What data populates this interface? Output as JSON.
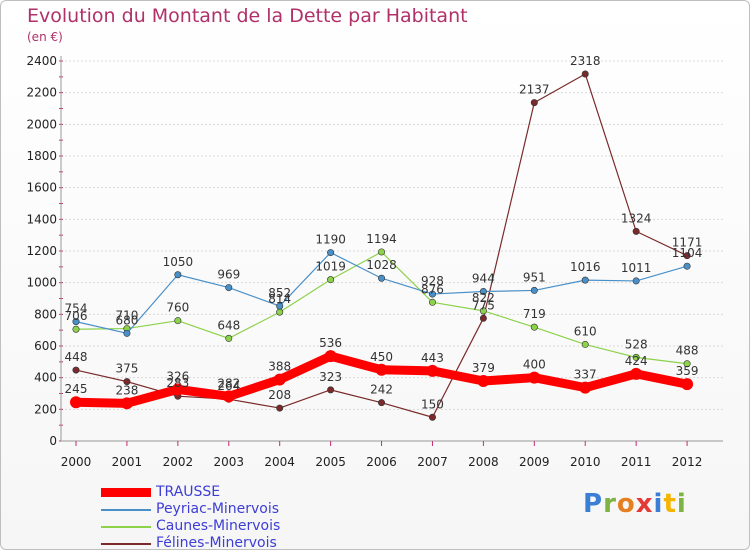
{
  "title": "Evolution du Montant de la Dette par Habitant",
  "subtitle": "(en €)",
  "logo": {
    "text": "Proxiti",
    "letter_colors": [
      "#3a7fd5",
      "#7cb342",
      "#e67e22",
      "#e53935",
      "#3a7fd5",
      "#f4b400",
      "#7cb342"
    ]
  },
  "chart_data": {
    "type": "line",
    "categories": [
      "2000",
      "2001",
      "2002",
      "2003",
      "2004",
      "2005",
      "2006",
      "2007",
      "2008",
      "2009",
      "2010",
      "2011",
      "2012"
    ],
    "ylim": [
      0,
      2400
    ],
    "yticks": [
      "0",
      "200",
      "400",
      "600",
      "800",
      "1000",
      "1200",
      "1400",
      "1600",
      "1800",
      "2000",
      "2200",
      "2400"
    ],
    "grid": "horizontal",
    "legend_position": "bottom-left",
    "series": [
      {
        "name": "TRAUSSE",
        "color": "#ff0000",
        "values": [
          245,
          238,
          326,
          282,
          388,
          536,
          450,
          443,
          379,
          400,
          337,
          424,
          359
        ],
        "labels": [
          "245",
          "238",
          "326",
          "282",
          "388",
          "536",
          "450",
          "443",
          "379",
          "400",
          "337",
          "424",
          "359"
        ]
      },
      {
        "name": "Peyriac-Minervois",
        "color": "#4a90c8",
        "values": [
          754,
          680,
          1050,
          969,
          852,
          1190,
          1028,
          928,
          944,
          951,
          1016,
          1011,
          1104
        ],
        "labels": [
          "754",
          "680",
          "1050",
          "969",
          "852",
          "1190",
          "1028",
          "928",
          "944",
          "951",
          "1016",
          "1011",
          "1104"
        ]
      },
      {
        "name": "Caunes-Minervois",
        "color": "#8cd24a",
        "values": [
          706,
          710,
          760,
          648,
          814,
          1019,
          1194,
          876,
          822,
          719,
          610,
          528,
          488
        ],
        "labels": [
          "706",
          "710",
          "760",
          "648",
          "814",
          "1019",
          "1194",
          "876",
          "822",
          "719",
          "610",
          "528",
          "488"
        ]
      },
      {
        "name": "Félines-Minervois",
        "color": "#7a2a2a",
        "values": [
          448,
          375,
          283,
          264,
          208,
          323,
          242,
          150,
          775,
          2137,
          2318,
          1324,
          1171
        ],
        "labels": [
          "448",
          "375",
          "283",
          "264",
          "208",
          "323",
          "242",
          "150",
          "775",
          "2137",
          "2318",
          "1324",
          "1171"
        ]
      }
    ]
  }
}
